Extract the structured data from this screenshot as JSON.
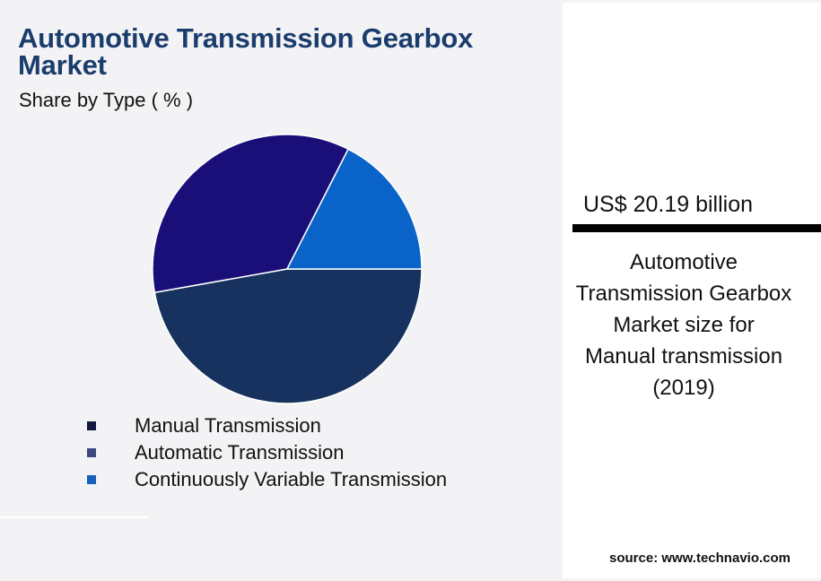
{
  "header": {
    "title": "Automotive Transmission Gearbox Market",
    "subtitle": "Share by Type ( % )"
  },
  "colors": {
    "legend_manual": "#12183f",
    "legend_automatic": "#3b4a7e",
    "legend_cvt": "#1560bd",
    "slice_large": "#17325e",
    "slice_medium": "#1a0f78",
    "slice_small": "#0a63c9"
  },
  "chart_data": {
    "type": "pie",
    "title": "Automotive Transmission Gearbox Market",
    "subtitle": "Share by Type ( % )",
    "legend_position": "bottom-left",
    "legend": [
      "Manual Transmission",
      "Automatic Transmission",
      "Continuously Variable Transmission"
    ],
    "slices": [
      {
        "value": 47.2,
        "color": "#17325e"
      },
      {
        "value": 35.3,
        "color": "#1a0f78"
      },
      {
        "value": 17.5,
        "color": "#0a63c9"
      }
    ]
  },
  "panel": {
    "value": "US$ 20.19 billion",
    "caption": "Automotive Transmission Gearbox Market size for Manual transmission (2019)",
    "source": "source: www.technavio.com"
  }
}
